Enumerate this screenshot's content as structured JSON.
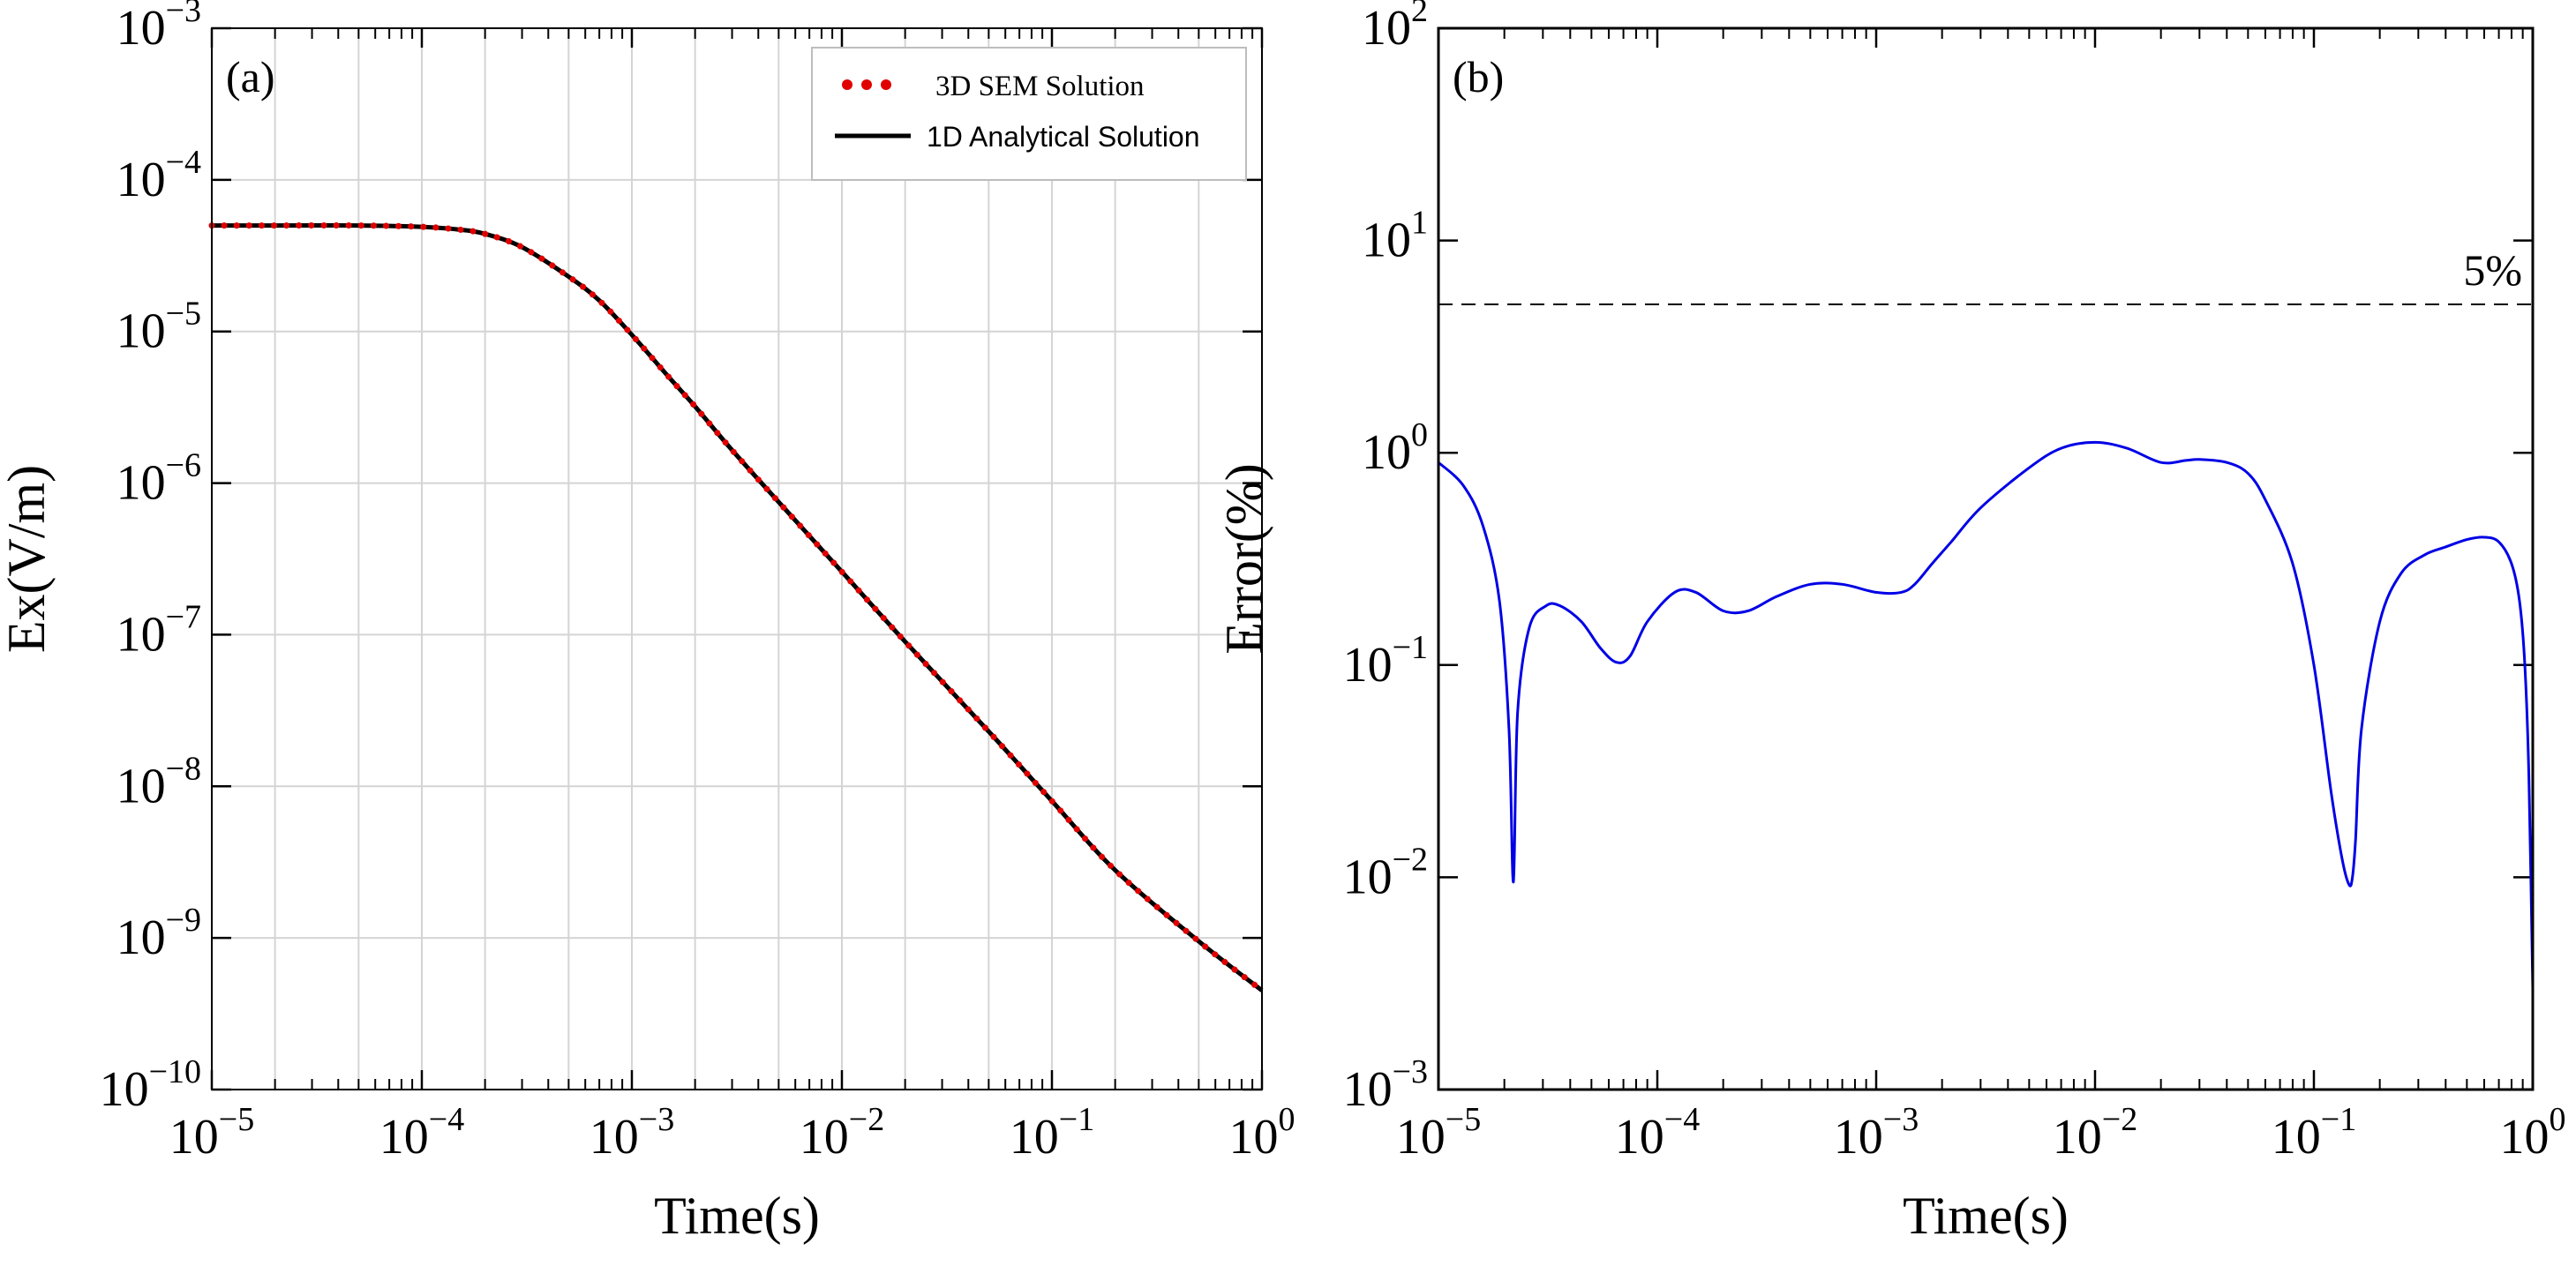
{
  "chart_data": [
    {
      "id": "a",
      "type": "line",
      "panel_label": "(a)",
      "xlabel": "Time(s)",
      "ylabel": "Ex(V/m)",
      "xscale": "log",
      "yscale": "log",
      "xlim": [
        1e-05,
        1
      ],
      "ylim": [
        1e-10,
        0.001
      ],
      "x_ticks": [
        {
          "base": "10",
          "exp": "−5"
        },
        {
          "base": "10",
          "exp": "−4"
        },
        {
          "base": "10",
          "exp": "−3"
        },
        {
          "base": "10",
          "exp": "−2"
        },
        {
          "base": "10",
          "exp": "−1"
        },
        {
          "base": "10",
          "exp": "0"
        }
      ],
      "y_ticks": [
        {
          "base": "10",
          "exp": "−10"
        },
        {
          "base": "10",
          "exp": "−9"
        },
        {
          "base": "10",
          "exp": "−8"
        },
        {
          "base": "10",
          "exp": "−7"
        },
        {
          "base": "10",
          "exp": "−6"
        },
        {
          "base": "10",
          "exp": "−5"
        },
        {
          "base": "10",
          "exp": "−4"
        },
        {
          "base": "10",
          "exp": "−3"
        }
      ],
      "grid": true,
      "legend": {
        "position": "top-right",
        "entries": [
          {
            "label": "3D SEM Solution",
            "style": "dotted",
            "color": "#e00000"
          },
          {
            "label": "1D Analytical Solution",
            "style": "solid",
            "color": "#000000"
          }
        ]
      },
      "series": [
        {
          "name": "1D Analytical Solution",
          "color": "#000000",
          "style": "solid",
          "x": [
            1e-05,
            2e-05,
            5e-05,
            0.0001,
            0.00015,
            0.0002,
            0.0003,
            0.0005,
            0.0007,
            0.001,
            0.0015,
            0.002,
            0.003,
            0.005,
            0.01,
            0.02,
            0.05,
            0.1,
            0.2,
            0.5,
            1
          ],
          "y": [
            5e-05,
            5e-05,
            5e-05,
            4.9e-05,
            4.7e-05,
            4.4e-05,
            3.6e-05,
            2.3e-05,
            1.6e-05,
            9.5e-06,
            5e-06,
            3.2e-06,
            1.65e-06,
            7.5e-07,
            2.6e-07,
            9e-08,
            2.3e-08,
            8e-09,
            2.8e-09,
            9.5e-10,
            4.5e-10
          ]
        },
        {
          "name": "3D SEM Solution",
          "color": "#e00000",
          "style": "dotted",
          "x": [
            1e-05,
            2e-05,
            5e-05,
            0.0001,
            0.00015,
            0.0002,
            0.0003,
            0.0005,
            0.0007,
            0.001,
            0.0015,
            0.002,
            0.003,
            0.005,
            0.01,
            0.02,
            0.05,
            0.1,
            0.2,
            0.5,
            1
          ],
          "y": [
            5e-05,
            5e-05,
            5e-05,
            4.9e-05,
            4.7e-05,
            4.4e-05,
            3.6e-05,
            2.3e-05,
            1.6e-05,
            9.5e-06,
            5e-06,
            3.2e-06,
            1.65e-06,
            7.5e-07,
            2.6e-07,
            9e-08,
            2.3e-08,
            8e-09,
            2.8e-09,
            9.5e-10,
            4.5e-10
          ]
        }
      ]
    },
    {
      "id": "b",
      "type": "line",
      "panel_label": "(b)",
      "xlabel": "Time(s)",
      "ylabel": "Error(%)",
      "xscale": "log",
      "yscale": "log",
      "xlim": [
        1e-05,
        1
      ],
      "ylim": [
        0.001,
        100
      ],
      "x_ticks": [
        {
          "base": "10",
          "exp": "−5"
        },
        {
          "base": "10",
          "exp": "−4"
        },
        {
          "base": "10",
          "exp": "−3"
        },
        {
          "base": "10",
          "exp": "−2"
        },
        {
          "base": "10",
          "exp": "−1"
        },
        {
          "base": "10",
          "exp": "0"
        }
      ],
      "y_ticks": [
        {
          "base": "10",
          "exp": "−3"
        },
        {
          "base": "10",
          "exp": "−2"
        },
        {
          "base": "10",
          "exp": "−1"
        },
        {
          "base": "10",
          "exp": "0"
        },
        {
          "base": "10",
          "exp": "1"
        },
        {
          "base": "10",
          "exp": "2"
        }
      ],
      "grid": false,
      "reference_line": {
        "value": 5,
        "label": "5%",
        "style": "dashed",
        "color": "#000000"
      },
      "series": [
        {
          "name": "Error",
          "color": "#0000e6",
          "style": "solid",
          "x": [
            1e-05,
            1.3e-05,
            1.6e-05,
            1.9e-05,
            2.1e-05,
            2.2e-05,
            2.3e-05,
            2.6e-05,
            3.1e-05,
            3.6e-05,
            4.5e-05,
            5.5e-05,
            6.5e-05,
            7.5e-05,
            9e-05,
            0.00012,
            0.00015,
            0.0002,
            0.00026,
            0.00035,
            0.0005,
            0.0007,
            0.001,
            0.0013,
            0.0015,
            0.0018,
            0.0022,
            0.003,
            0.005,
            0.007,
            0.01,
            0.014,
            0.02,
            0.026,
            0.03,
            0.04,
            0.05,
            0.06,
            0.08,
            0.1,
            0.12,
            0.135,
            0.145,
            0.15,
            0.155,
            0.165,
            0.2,
            0.25,
            0.32,
            0.4,
            0.5,
            0.6,
            0.7,
            0.8,
            0.87,
            0.92,
            0.96,
            1
          ],
          "y": [
            0.9,
            0.7,
            0.45,
            0.2,
            0.05,
            0.0095,
            0.06,
            0.15,
            0.19,
            0.19,
            0.16,
            0.12,
            0.103,
            0.11,
            0.16,
            0.22,
            0.22,
            0.18,
            0.18,
            0.21,
            0.24,
            0.24,
            0.22,
            0.22,
            0.24,
            0.3,
            0.38,
            0.55,
            0.85,
            1.05,
            1.12,
            1.05,
            0.9,
            0.92,
            0.93,
            0.9,
            0.8,
            0.6,
            0.3,
            0.1,
            0.025,
            0.012,
            0.0092,
            0.01,
            0.015,
            0.05,
            0.16,
            0.27,
            0.33,
            0.36,
            0.39,
            0.4,
            0.38,
            0.3,
            0.2,
            0.1,
            0.03,
            0.003
          ]
        }
      ]
    }
  ]
}
